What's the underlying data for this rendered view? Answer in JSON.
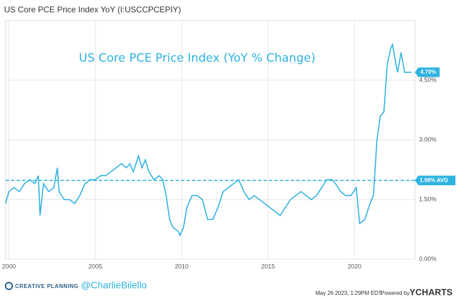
{
  "chart_data": {
    "type": "line",
    "title": "US Core PCE Price Index YoY (I:USCCPCEPIY)",
    "annotation": "US Core PCE Price Index (YoY % Change)",
    "series": [
      {
        "name": "US Core PCE Price Index YoY",
        "color": "#2fb3e0",
        "x": [
          1999.8,
          2000.0,
          2000.3,
          2000.6,
          2000.9,
          2001.2,
          2001.5,
          2001.7,
          2001.8,
          2002.0,
          2002.3,
          2002.6,
          2002.8,
          2002.9,
          2003.2,
          2003.5,
          2003.8,
          2004.1,
          2004.4,
          2004.7,
          2005.0,
          2005.3,
          2005.6,
          2005.9,
          2006.2,
          2006.5,
          2006.8,
          2007.0,
          2007.2,
          2007.5,
          2007.7,
          2007.9,
          2008.1,
          2008.4,
          2008.7,
          2008.9,
          2009.1,
          2009.3,
          2009.5,
          2009.8,
          2009.9,
          2010.1,
          2010.3,
          2010.6,
          2010.9,
          2011.2,
          2011.5,
          2011.8,
          2012.1,
          2012.4,
          2012.7,
          2013.0,
          2013.3,
          2013.6,
          2013.9,
          2014.2,
          2014.5,
          2014.8,
          2015.1,
          2015.4,
          2015.7,
          2016.0,
          2016.3,
          2016.6,
          2016.9,
          2017.2,
          2017.5,
          2017.8,
          2018.1,
          2018.4,
          2018.7,
          2018.9,
          2019.2,
          2019.5,
          2019.8,
          2020.1,
          2020.3,
          2020.6,
          2020.9,
          2021.1,
          2021.3,
          2021.5,
          2021.7,
          2021.9,
          2022.1,
          2022.2,
          2022.4,
          2022.5,
          2022.7,
          2022.9,
          2023.1,
          2023.3
        ],
        "values": [
          1.4,
          1.7,
          1.8,
          1.7,
          1.9,
          2.0,
          1.9,
          2.1,
          1.1,
          1.9,
          1.7,
          1.8,
          2.3,
          1.7,
          1.5,
          1.5,
          1.4,
          1.6,
          1.9,
          2.0,
          2.0,
          2.1,
          2.1,
          2.2,
          2.3,
          2.4,
          2.3,
          2.4,
          2.2,
          2.6,
          2.3,
          2.5,
          2.2,
          2.0,
          2.1,
          2.0,
          1.6,
          1.0,
          0.8,
          0.7,
          0.6,
          0.8,
          1.3,
          1.6,
          1.6,
          1.5,
          1.0,
          1.0,
          1.3,
          1.7,
          1.8,
          1.9,
          2.0,
          1.7,
          1.5,
          1.6,
          1.5,
          1.4,
          1.3,
          1.2,
          1.1,
          1.3,
          1.5,
          1.6,
          1.7,
          1.6,
          1.5,
          1.6,
          1.8,
          2.0,
          2.0,
          1.9,
          1.7,
          1.6,
          1.6,
          1.8,
          0.9,
          1.0,
          1.4,
          1.6,
          3.0,
          3.6,
          3.7,
          4.9,
          5.3,
          5.4,
          4.9,
          4.7,
          5.2,
          4.7,
          4.7,
          4.7
        ]
      }
    ],
    "average": {
      "value": 1.98,
      "label": "1.98% AVG"
    },
    "last_value": {
      "value": 4.7,
      "label": "4.70%"
    },
    "xlim": [
      1999.8,
      2023.5
    ],
    "xticks": [
      2000,
      2005,
      2010,
      2015,
      2020
    ],
    "ylim": [
      0,
      6
    ],
    "yticks": [
      {
        "value": 0,
        "label": "0.00%"
      },
      {
        "value": 1.5,
        "label": "1.50%"
      },
      {
        "value": 3,
        "label": "3.00%"
      },
      {
        "value": 4.5,
        "label": "4.50%"
      }
    ],
    "grid": true,
    "footer": {
      "brand": "CREATIVE PLANNING",
      "handle": "@CharlieBilello",
      "timestamp": "May 26 2023, 1:29PM EDT.",
      "powered": "Powered by",
      "logo": "YCHARTS"
    }
  }
}
